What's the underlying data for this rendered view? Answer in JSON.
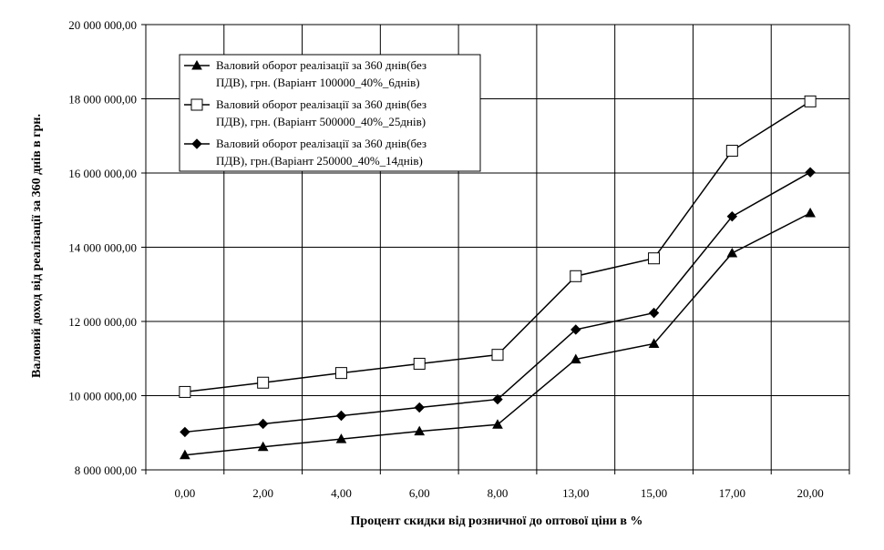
{
  "chart_data": {
    "type": "line",
    "categories": [
      "0,00",
      "2,00",
      "4,00",
      "6,00",
      "8,00",
      "13,00",
      "15,00",
      "17,00",
      "20,00"
    ],
    "ylim": [
      8000000,
      20000000
    ],
    "yticks": [
      8000000,
      10000000,
      12000000,
      14000000,
      16000000,
      18000000,
      20000000
    ],
    "ytick_labels": [
      "8 000 000,00",
      "10 000 000,00",
      "12 000 000,00",
      "14 000 000,00",
      "16 000 000,00",
      "18 000 000,00",
      "20 000 000,00"
    ],
    "xlabel": "Процент скидки від розничної до оптової ціни в %",
    "ylabel": "Валовий доход від реалізації за 360 днів в грн.",
    "grid": true,
    "legend_position": "top-left",
    "series": [
      {
        "name_line1": "Валовий оборот реалізації за 360 днів(без",
        "name_line2": "ПДВ), грн. (Варіант 100000_40%_6днів)",
        "marker": "triangle",
        "values": [
          8400000,
          8620000,
          8830000,
          9040000,
          9220000,
          10980000,
          11400000,
          13840000,
          14920000
        ]
      },
      {
        "name_line1": "Валовий оборот реалізації за 360 днів(без",
        "name_line2": "ПДВ), грн. (Варіант 500000_40%_25днів)",
        "marker": "square-open",
        "values": [
          10100000,
          10350000,
          10610000,
          10860000,
          11100000,
          13220000,
          13700000,
          16600000,
          17930000
        ]
      },
      {
        "name_line1": "Валовий оборот реалізації за 360 днів(без",
        "name_line2": "ПДВ), грн.(Варіант 250000_40%_14днів)",
        "marker": "diamond",
        "values": [
          9020000,
          9240000,
          9460000,
          9680000,
          9900000,
          11780000,
          12230000,
          14830000,
          16020000
        ]
      }
    ]
  }
}
